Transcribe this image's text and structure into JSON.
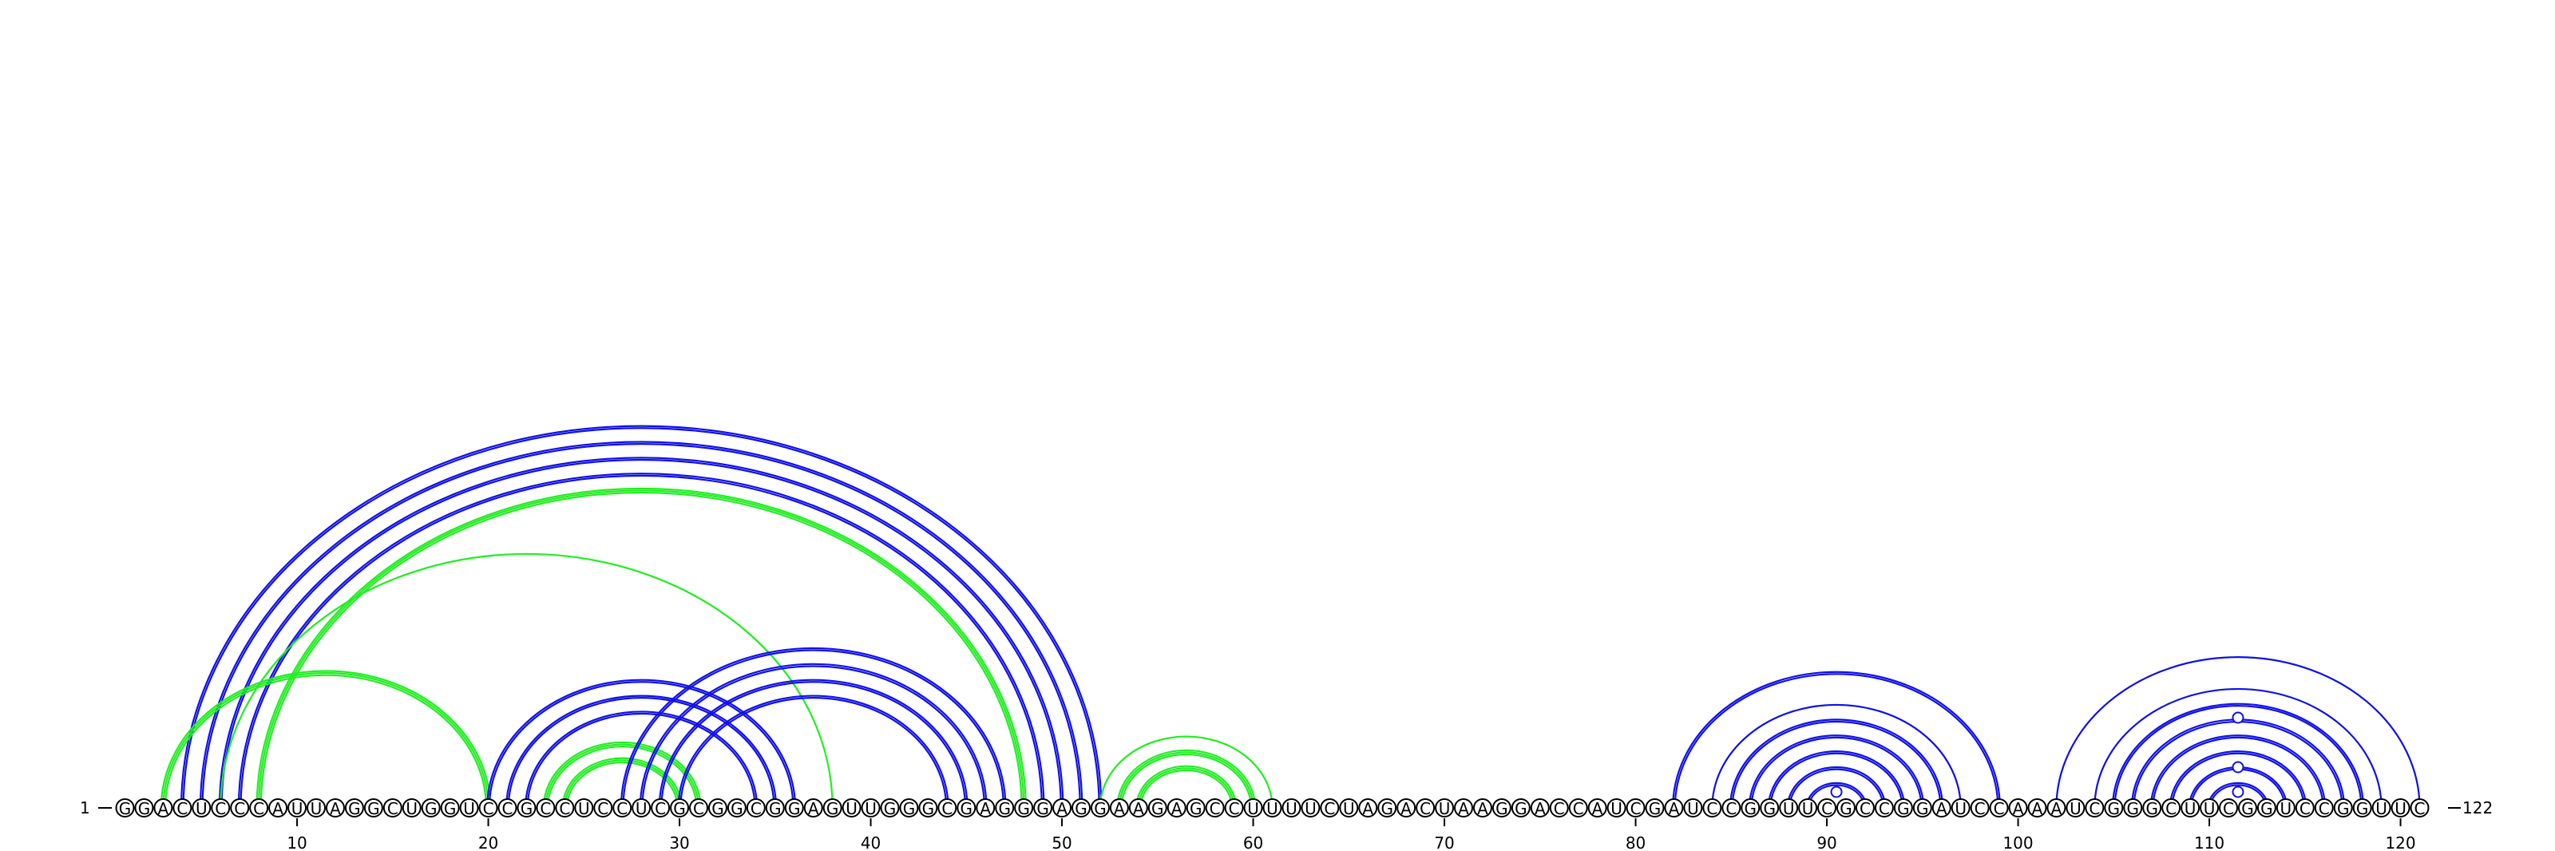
{
  "diagram": {
    "sequence": "GGACUCCCAUUAGGCUGGUCCGCCUCCUCGCGGCGGAGUUGGGCGAGGGAGGAAGAGCCUUUUCUAGACUAAGGACCAUCGAUCCGGUUCGCCGGAUCCAAAUCGGGCUUCGGUCCGGUUC",
    "start_label": "1",
    "end_label": "122",
    "ticks": [
      10,
      20,
      30,
      40,
      50,
      60,
      70,
      80,
      90,
      100,
      110,
      120
    ],
    "colors": {
      "blue": "#1010e8",
      "green": "#22ee22"
    }
  },
  "chart_data": {
    "type": "arc-diagram",
    "length": 122,
    "arcs": [
      {
        "i": 4,
        "j": 52,
        "color": "blue",
        "strands": 2
      },
      {
        "i": 5,
        "j": 51,
        "color": "blue",
        "strands": 2
      },
      {
        "i": 6,
        "j": 50,
        "color": "blue",
        "strands": 2
      },
      {
        "i": 7,
        "j": 49,
        "color": "blue",
        "strands": 2
      },
      {
        "i": 8,
        "j": 48,
        "color": "green",
        "strands": 3
      },
      {
        "i": 3,
        "j": 20,
        "color": "green",
        "strands": 3
      },
      {
        "i": 6,
        "j": 38,
        "color": "green",
        "strands": 1
      },
      {
        "i": 20,
        "j": 36,
        "color": "blue",
        "strands": 2
      },
      {
        "i": 21,
        "j": 35,
        "color": "blue",
        "strands": 2
      },
      {
        "i": 22,
        "j": 34,
        "color": "blue",
        "strands": 2
      },
      {
        "i": 23,
        "j": 31,
        "color": "green",
        "strands": 3
      },
      {
        "i": 24,
        "j": 30,
        "color": "green",
        "strands": 3
      },
      {
        "i": 27,
        "j": 47,
        "color": "blue",
        "strands": 2
      },
      {
        "i": 28,
        "j": 46,
        "color": "blue",
        "strands": 2
      },
      {
        "i": 29,
        "j": 45,
        "color": "blue",
        "strands": 2
      },
      {
        "i": 30,
        "j": 44,
        "color": "blue",
        "strands": 2
      },
      {
        "i": 52,
        "j": 61,
        "color": "green",
        "strands": 1
      },
      {
        "i": 53,
        "j": 60,
        "color": "green",
        "strands": 3
      },
      {
        "i": 54,
        "j": 59,
        "color": "green",
        "strands": 3
      },
      {
        "i": 82,
        "j": 99,
        "color": "blue",
        "strands": 2
      },
      {
        "i": 84,
        "j": 97,
        "color": "blue",
        "strands": 1
      },
      {
        "i": 85,
        "j": 96,
        "color": "blue",
        "strands": 2
      },
      {
        "i": 86,
        "j": 95,
        "color": "blue",
        "strands": 2
      },
      {
        "i": 87,
        "j": 94,
        "color": "blue",
        "strands": 2
      },
      {
        "i": 88,
        "j": 93,
        "color": "blue",
        "strands": 2
      },
      {
        "i": 89,
        "j": 92,
        "color": "blue",
        "strands": 2
      },
      {
        "i": 102,
        "j": 121,
        "color": "blue",
        "strands": 1
      },
      {
        "i": 104,
        "j": 119,
        "color": "blue",
        "strands": 1
      },
      {
        "i": 105,
        "j": 118,
        "color": "blue",
        "strands": 2
      },
      {
        "i": 106,
        "j": 117,
        "color": "blue",
        "strands": 2
      },
      {
        "i": 107,
        "j": 116,
        "color": "blue",
        "strands": 2
      },
      {
        "i": 108,
        "j": 115,
        "color": "blue",
        "strands": 2
      },
      {
        "i": 109,
        "j": 114,
        "color": "blue",
        "strands": 2
      },
      {
        "i": 110,
        "j": 113,
        "color": "blue",
        "strands": 2
      }
    ],
    "markers": [
      {
        "pos": 90.5,
        "level": 1
      },
      {
        "pos": 111.5,
        "level": 1
      },
      {
        "pos": 111.5,
        "level": 2
      },
      {
        "pos": 111.5,
        "level": 4
      }
    ]
  }
}
